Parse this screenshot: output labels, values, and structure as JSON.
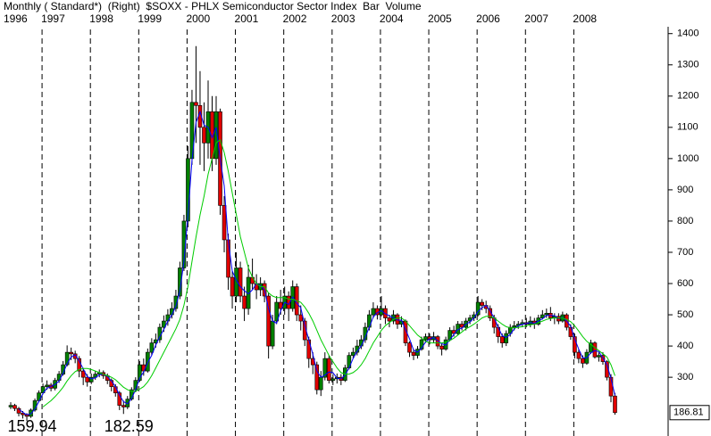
{
  "chart_data": {
    "type": "candlestick",
    "title": "Monthly ( Standard*)  (Right)  $SOXX - PHLX Semiconductor Sector Index  Bar  Volume",
    "categories": [
      "1996",
      null,
      null,
      null,
      null,
      null,
      null,
      null,
      "1997",
      null,
      null,
      null,
      null,
      null,
      null,
      null,
      null,
      null,
      null,
      null,
      "1998",
      null,
      null,
      null,
      null,
      null,
      null,
      null,
      null,
      null,
      null,
      null,
      "1999",
      null,
      null,
      null,
      null,
      null,
      null,
      null,
      null,
      null,
      null,
      null,
      "2000",
      null,
      null,
      null,
      null,
      null,
      null,
      null,
      null,
      null,
      null,
      null,
      "2001",
      null,
      null,
      null,
      null,
      null,
      null,
      null,
      null,
      null,
      null,
      null,
      "2002",
      null,
      null,
      null,
      null,
      null,
      null,
      null,
      null,
      null,
      null,
      null,
      "2003",
      null,
      null,
      null,
      null,
      null,
      null,
      null,
      null,
      null,
      null,
      null,
      "2004",
      null,
      null,
      null,
      null,
      null,
      null,
      null,
      null,
      null,
      null,
      null,
      "2005",
      null,
      null,
      null,
      null,
      null,
      null,
      null,
      null,
      null,
      null,
      null,
      "2006",
      null,
      null,
      null,
      null,
      null,
      null,
      null,
      null,
      null,
      null,
      null,
      "2007",
      null,
      null,
      null,
      null,
      null,
      null,
      null,
      null,
      null,
      null,
      null,
      "2008",
      null,
      null,
      null,
      null,
      null,
      null,
      null,
      null,
      null,
      null
    ],
    "open": [
      205,
      210,
      200,
      185,
      180,
      175,
      195,
      225,
      250,
      270,
      275,
      265,
      290,
      310,
      340,
      380,
      375,
      360,
      320,
      300,
      285,
      300,
      310,
      315,
      305,
      290,
      270,
      250,
      210,
      205,
      230,
      260,
      290,
      340,
      320,
      380,
      410,
      420,
      460,
      480,
      500,
      520,
      560,
      650,
      800,
      1000,
      1180,
      1170,
      1100,
      1050,
      1150,
      1000,
      1150,
      850,
      740,
      620,
      560,
      650,
      560,
      520,
      620,
      600,
      580,
      600,
      560,
      400,
      480,
      540,
      520,
      560,
      520,
      590,
      500,
      480,
      420,
      360,
      340,
      260,
      300,
      360,
      290,
      295,
      300,
      290,
      330,
      370,
      380,
      400,
      420,
      460,
      500,
      520,
      500,
      520,
      490,
      480,
      500,
      470,
      480,
      410,
      380,
      370,
      390,
      420,
      430,
      420,
      430,
      400,
      390,
      420,
      450,
      440,
      470,
      460,
      480,
      490,
      500,
      540,
      530,
      520,
      490,
      460,
      430,
      410,
      440,
      460,
      465,
      470,
      475,
      470,
      480,
      470,
      490,
      500,
      505,
      490,
      495,
      480,
      500,
      460,
      430,
      380,
      360,
      345,
      380,
      410,
      365,
      370,
      350,
      300,
      240
    ],
    "high": [
      220,
      215,
      205,
      192,
      185,
      200,
      232,
      258,
      280,
      290,
      282,
      298,
      320,
      352,
      402,
      395,
      385,
      368,
      330,
      310,
      312,
      320,
      325,
      322,
      312,
      296,
      278,
      256,
      225,
      240,
      268,
      300,
      352,
      360,
      392,
      425,
      440,
      472,
      498,
      518,
      540,
      580,
      670,
      820,
      1040,
      1220,
      1360,
      1280,
      1180,
      1250,
      1200,
      1200,
      1160,
      880,
      760,
      640,
      700,
      670,
      590,
      660,
      680,
      630,
      620,
      610,
      570,
      500,
      560,
      580,
      590,
      575,
      610,
      600,
      530,
      490,
      430,
      380,
      350,
      320,
      380,
      370,
      310,
      312,
      310,
      340,
      380,
      395,
      420,
      435,
      475,
      515,
      540,
      530,
      560,
      530,
      500,
      515,
      505,
      495,
      485,
      415,
      390,
      400,
      430,
      440,
      440,
      445,
      435,
      410,
      430,
      460,
      465,
      480,
      480,
      490,
      500,
      510,
      560,
      550,
      545,
      530,
      500,
      470,
      440,
      450,
      470,
      480,
      480,
      485,
      490,
      495,
      490,
      500,
      515,
      520,
      525,
      505,
      505,
      510,
      505,
      470,
      440,
      390,
      370,
      390,
      420,
      415,
      380,
      380,
      355,
      310,
      250
    ],
    "low": [
      198,
      192,
      175,
      168,
      159.94,
      170,
      190,
      220,
      245,
      260,
      255,
      258,
      282,
      305,
      335,
      355,
      345,
      300,
      275,
      270,
      278,
      292,
      300,
      295,
      278,
      255,
      238,
      195,
      182.59,
      198,
      225,
      252,
      285,
      305,
      315,
      370,
      395,
      410,
      445,
      465,
      488,
      510,
      550,
      640,
      780,
      980,
      1050,
      980,
      960,
      1000,
      960,
      980,
      820,
      700,
      580,
      520,
      540,
      540,
      480,
      500,
      580,
      550,
      560,
      540,
      360,
      390,
      470,
      500,
      500,
      480,
      510,
      480,
      450,
      400,
      330,
      310,
      245,
      240,
      290,
      280,
      275,
      280,
      275,
      285,
      325,
      360,
      370,
      390,
      410,
      450,
      490,
      485,
      495,
      470,
      460,
      470,
      455,
      460,
      400,
      365,
      355,
      360,
      385,
      410,
      405,
      410,
      390,
      370,
      385,
      415,
      430,
      435,
      450,
      450,
      470,
      480,
      495,
      515,
      505,
      480,
      440,
      410,
      395,
      400,
      430,
      450,
      455,
      460,
      460,
      460,
      455,
      465,
      485,
      490,
      480,
      470,
      470,
      475,
      450,
      420,
      360,
      345,
      330,
      340,
      375,
      360,
      350,
      340,
      290,
      220,
      180
    ],
    "close": [
      210,
      200,
      185,
      180,
      175,
      195,
      225,
      250,
      270,
      275,
      265,
      290,
      310,
      340,
      380,
      375,
      360,
      320,
      300,
      285,
      300,
      310,
      315,
      305,
      290,
      270,
      250,
      210,
      205,
      230,
      260,
      290,
      340,
      320,
      380,
      410,
      420,
      460,
      480,
      500,
      520,
      560,
      650,
      800,
      1000,
      1180,
      1170,
      1100,
      1050,
      1150,
      1000,
      1150,
      850,
      740,
      620,
      560,
      650,
      560,
      520,
      620,
      600,
      580,
      600,
      560,
      400,
      480,
      540,
      520,
      560,
      520,
      590,
      500,
      480,
      420,
      360,
      340,
      260,
      300,
      360,
      290,
      295,
      300,
      290,
      330,
      370,
      380,
      400,
      420,
      460,
      500,
      520,
      500,
      520,
      490,
      480,
      500,
      470,
      480,
      410,
      380,
      370,
      390,
      420,
      430,
      420,
      430,
      400,
      390,
      420,
      450,
      440,
      470,
      460,
      480,
      490,
      500,
      540,
      530,
      520,
      490,
      460,
      430,
      410,
      440,
      460,
      465,
      470,
      475,
      470,
      480,
      470,
      490,
      500,
      505,
      490,
      495,
      480,
      500,
      460,
      430,
      380,
      360,
      345,
      380,
      410,
      365,
      370,
      350,
      300,
      240,
      186.81
    ],
    "up_color": "#008000",
    "down_color": "#e00000",
    "series": [
      {
        "color": "#0000ff",
        "values": [
          null,
          null,
          198,
          188,
          180,
          183,
          198,
          223,
          248,
          265,
          270,
          277,
          288,
          313,
          343,
          365,
          372,
          352,
          327,
          302,
          295,
          298,
          308,
          310,
          303,
          288,
          270,
          243,
          222,
          215,
          232,
          260,
          297,
          317,
          347,
          370,
          403,
          430,
          453,
          480,
          500,
          527,
          577,
          670,
          817,
          993,
          1117,
          1150,
          1107,
          1100,
          1067,
          1100,
          1000,
          913,
          737,
          640,
          610,
          590,
          577,
          567,
          580,
          600,
          593,
          580,
          520,
          480,
          473,
          513,
          540,
          533,
          557,
          537,
          523,
          467,
          420,
          373,
          320,
          300,
          307,
          317,
          315,
          297,
          295,
          307,
          330,
          360,
          383,
          400,
          427,
          460,
          493,
          507,
          513,
          503,
          497,
          490,
          483,
          483,
          453,
          423,
          387,
          380,
          393,
          413,
          423,
          427,
          417,
          407,
          403,
          420,
          437,
          453,
          457,
          470,
          477,
          490,
          510,
          523,
          530,
          513,
          490,
          460,
          433,
          427,
          437,
          455,
          465,
          470,
          472,
          475,
          473,
          480,
          487,
          498,
          498,
          497,
          488,
          492,
          480,
          463,
          423,
          390,
          362,
          362,
          378,
          385,
          382,
          362,
          340,
          297,
          242
        ]
      },
      {
        "color": "#00cc00",
        "values": [
          null,
          null,
          null,
          null,
          null,
          null,
          null,
          null,
          205,
          215,
          225,
          238,
          252,
          268,
          288,
          305,
          318,
          325,
          328,
          328,
          325,
          320,
          315,
          310,
          305,
          300,
          292,
          280,
          268,
          260,
          255,
          255,
          262,
          270,
          285,
          305,
          330,
          355,
          380,
          405,
          430,
          455,
          485,
          530,
          590,
          670,
          750,
          820,
          880,
          950,
          1000,
          1050,
          1060,
          1020,
          960,
          890,
          820,
          750,
          700,
          650,
          620,
          600,
          590,
          590,
          570,
          560,
          555,
          555,
          555,
          550,
          550,
          545,
          540,
          525,
          505,
          480,
          450,
          420,
          395,
          370,
          350,
          330,
          315,
          310,
          310,
          315,
          325,
          340,
          360,
          385,
          410,
          430,
          450,
          465,
          475,
          485,
          490,
          490,
          480,
          465,
          450,
          435,
          425,
          415,
          410,
          410,
          410,
          410,
          412,
          418,
          425,
          435,
          445,
          455,
          462,
          470,
          480,
          490,
          495,
          495,
          490,
          480,
          470,
          462,
          458,
          458,
          460,
          462,
          465,
          468,
          470,
          475,
          480,
          485,
          488,
          490,
          490,
          490,
          485,
          478,
          465,
          448,
          430,
          415,
          405,
          395,
          385,
          375,
          365,
          340,
          305
        ]
      }
    ],
    "annotations": [
      159.94,
      182.59
    ],
    "ylim": [
      112,
      1422
    ],
    "yticks": [
      300,
      400,
      500,
      600,
      700,
      800,
      900,
      1000,
      1100,
      1200,
      1300,
      1400
    ],
    "grid": true
  }
}
